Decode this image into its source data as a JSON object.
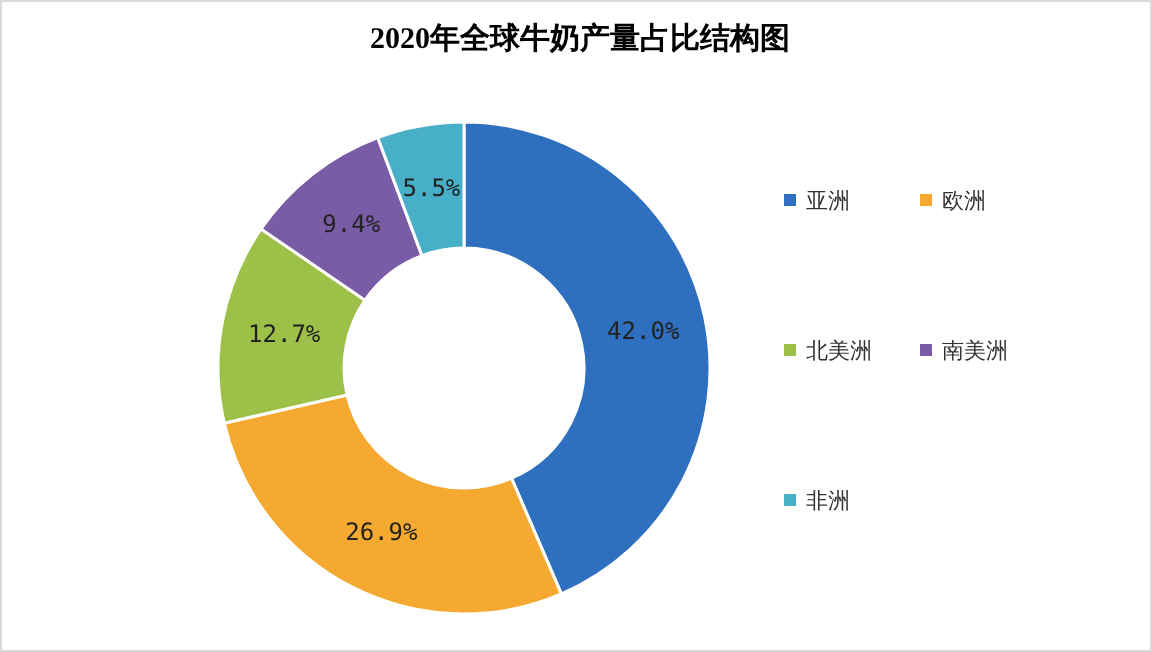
{
  "chart_data": {
    "type": "donut",
    "title": "2020年全球牛奶产量占比结构图",
    "categories": [
      "亚洲",
      "欧洲",
      "北美洲",
      "南美洲",
      "非洲"
    ],
    "values": [
      42.0,
      26.9,
      12.7,
      9.4,
      5.5
    ],
    "colors": [
      "#2e6fbf",
      "#f5a930",
      "#9cc048",
      "#7a5ba6",
      "#47afc8"
    ],
    "value_labels": [
      "42.0%",
      "26.9%",
      "12.7%",
      "9.4%",
      "5.5%"
    ],
    "legend": "right"
  }
}
